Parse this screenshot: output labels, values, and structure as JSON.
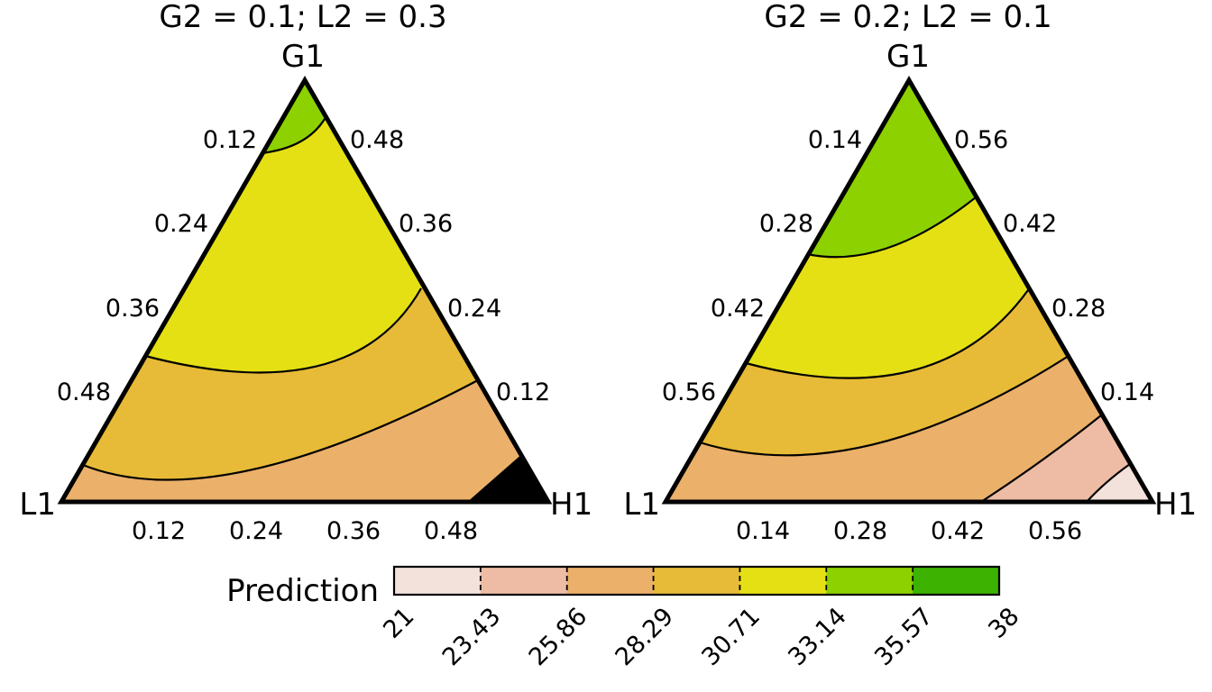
{
  "chart_data": {
    "type": "ternary-contour",
    "panels": [
      {
        "title": "G2 = 0.1; L2 = 0.3",
        "vertices": {
          "top": "G1",
          "left": "L1",
          "right": "H1"
        },
        "axis_max": 0.6,
        "left_edge_ticks": [
          "0.12",
          "0.24",
          "0.36",
          "0.48"
        ],
        "right_edge_ticks": [
          "0.48",
          "0.36",
          "0.24",
          "0.12"
        ],
        "bottom_edge_ticks": [
          "0.12",
          "0.24",
          "0.36",
          "0.48"
        ],
        "tick_values": [
          0.12,
          0.24,
          0.36,
          0.48
        ],
        "regions": [
          {
            "range": "23.43-25.86",
            "color": "#EEBCA4"
          },
          {
            "range": "25.86-28.29",
            "color": "#EBB06A"
          },
          {
            "range": "28.29-30.71",
            "color": "#E7BB37"
          },
          {
            "range": "30.71-33.14",
            "color": "#E5E014"
          },
          {
            "range": "33.14-35.57",
            "color": "#8DD100"
          }
        ]
      },
      {
        "title": "G2 = 0.2; L2 = 0.1",
        "vertices": {
          "top": "G1",
          "left": "L1",
          "right": "H1"
        },
        "axis_max": 0.7,
        "left_edge_ticks": [
          "0.14",
          "0.28",
          "0.42",
          "0.56"
        ],
        "right_edge_ticks": [
          "0.56",
          "0.42",
          "0.28",
          "0.14"
        ],
        "bottom_edge_ticks": [
          "0.14",
          "0.28",
          "0.42",
          "0.56"
        ],
        "tick_values": [
          0.14,
          0.28,
          0.42,
          0.56
        ],
        "regions": [
          {
            "range": "21-23.43",
            "color": "#F3E1DB"
          },
          {
            "range": "23.43-25.86",
            "color": "#EEBCA4"
          },
          {
            "range": "25.86-28.29",
            "color": "#EBB06A"
          },
          {
            "range": "28.29-30.71",
            "color": "#E7BB37"
          },
          {
            "range": "30.71-33.14",
            "color": "#E5E014"
          },
          {
            "range": "33.14-35.57",
            "color": "#8DD100"
          }
        ]
      }
    ],
    "legend": {
      "title": "Prediction",
      "breaks": [
        "21",
        "23.43",
        "25.86",
        "28.29",
        "30.71",
        "33.14",
        "35.57",
        "38"
      ],
      "colors": [
        "#F3E1DB",
        "#EEBCA4",
        "#EBB06A",
        "#E7BB37",
        "#E5E014",
        "#8DD100",
        "#3DB200"
      ]
    }
  }
}
